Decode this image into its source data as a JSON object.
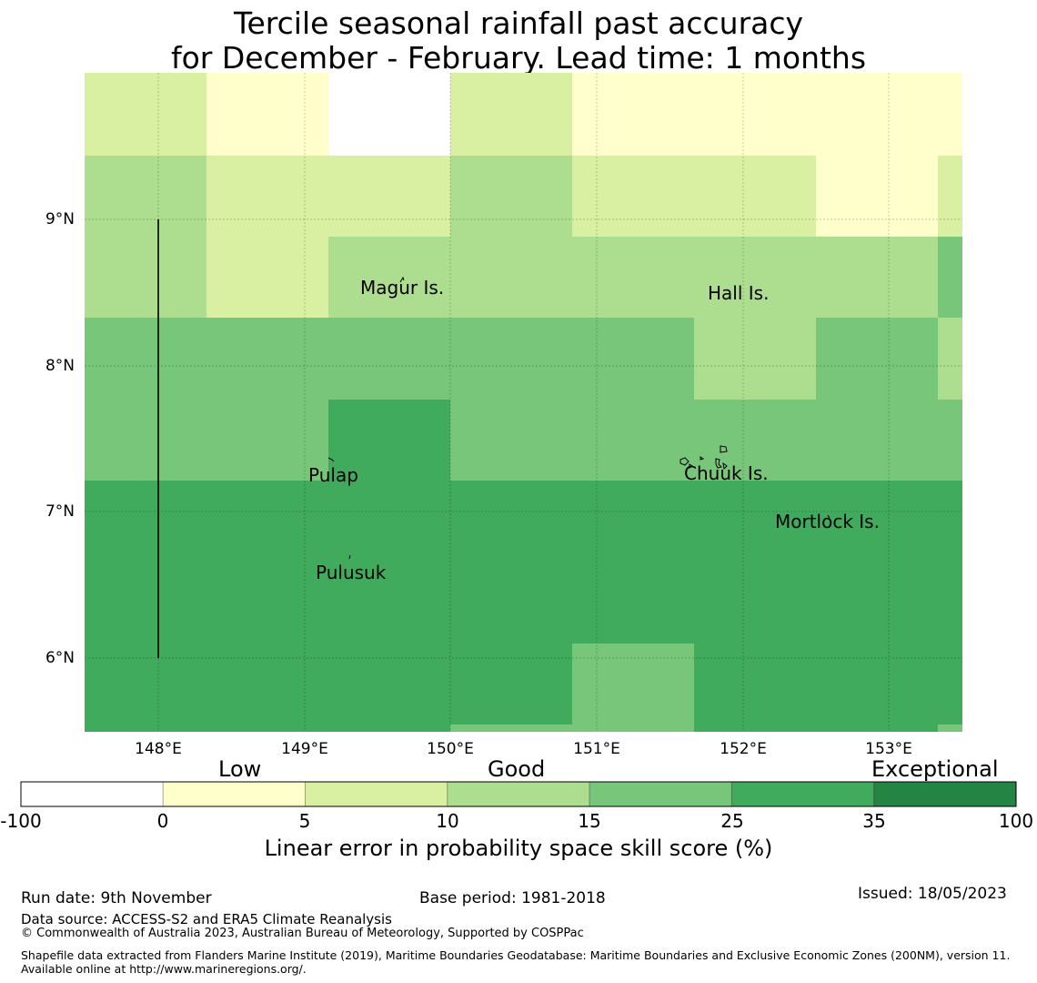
{
  "title": {
    "line1": "Tercile seasonal rainfall past accuracy",
    "line2": "for December - February. Lead time: 1 months"
  },
  "map": {
    "lat_labels": [
      "9°N",
      "8°N",
      "7°N",
      "6°N"
    ],
    "lon_labels": [
      "148°E",
      "149°E",
      "150°E",
      "151°E",
      "152°E",
      "153°E"
    ],
    "places": [
      "Magur Is.",
      "Hall Is.",
      "Pulap",
      "Chuuk Is.",
      "Mortlock Is.",
      "Pulusuk"
    ],
    "grid": [
      [
        5,
        0,
        -100,
        5,
        0,
        0,
        0,
        0
      ],
      [
        10,
        5,
        5,
        10,
        5,
        5,
        0,
        5
      ],
      [
        10,
        5,
        10,
        10,
        10,
        10,
        10,
        15
      ],
      [
        15,
        15,
        15,
        15,
        15,
        10,
        15,
        10
      ],
      [
        15,
        15,
        25,
        15,
        15,
        15,
        15,
        15
      ],
      [
        25,
        25,
        25,
        25,
        25,
        25,
        25,
        25
      ],
      [
        25,
        25,
        25,
        25,
        15,
        25,
        25,
        25
      ]
    ]
  },
  "colorbar": {
    "categories": [
      "Low",
      "Good",
      "Exceptional"
    ],
    "ticks": [
      "-100",
      "0",
      "5",
      "10",
      "15",
      "25",
      "35",
      "100"
    ],
    "colors": [
      "#ffffff",
      "#ffffcc",
      "#d9f0a3",
      "#addd8e",
      "#78c679",
      "#41ab5d",
      "#238443"
    ],
    "label": "Linear error in probability space skill score (%)"
  },
  "footer": {
    "run_date": "Run date: 9th November",
    "base_period": "Base period: 1981-2018",
    "issued": "Issued: 18/05/2023",
    "data_source": "Data source: ACCESS-S2 and ERA5 Climate Reanalysis",
    "copyright": "© Commonwealth of Australia 2023, Australian Bureau of Meteorology, Supported by COSPPac",
    "shapefile": "Shapefile data extracted from Flanders Marine Institute (2019), Maritime Boundaries Geodatabase: Maritime Boundaries and Exclusive Economic Zones (200NM), version 11. Available online at http://www.marineregions.org/."
  }
}
